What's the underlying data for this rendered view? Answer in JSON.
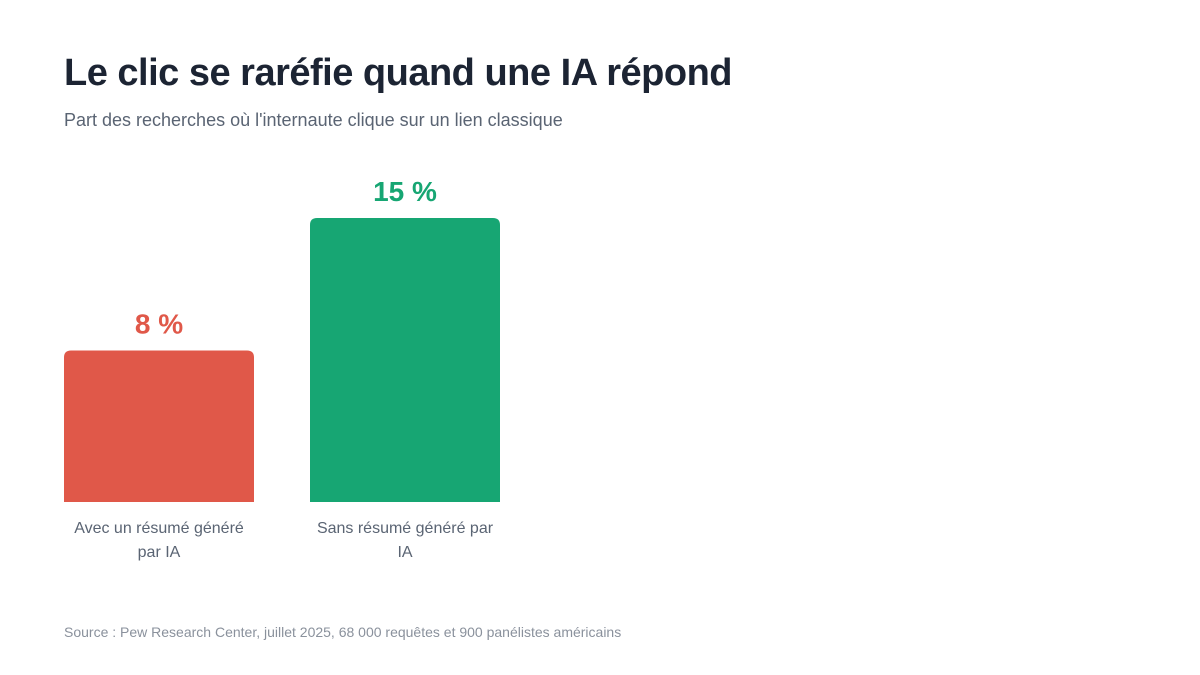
{
  "title": "Le clic se raréfie quand une IA répond",
  "subtitle": "Part des recherches où l'internaute clique sur un lien classique",
  "source": "Source : Pew Research Center, juillet 2025, 68 000 requêtes et 900 panélistes américains",
  "chart_data": {
    "type": "bar",
    "categories": [
      "Avec un résumé généré par IA",
      "Sans résumé généré par IA"
    ],
    "category_lines": [
      [
        "Avec un résumé généré",
        "par IA"
      ],
      [
        "Sans résumé généré par",
        "IA"
      ]
    ],
    "values": [
      8,
      15
    ],
    "value_labels": [
      "8 %",
      "15 %"
    ],
    "colors": [
      "#e05849",
      "#17a673"
    ],
    "ylim": [
      0,
      15
    ],
    "grid": false,
    "legend": "none",
    "xlabel": "",
    "ylabel": ""
  }
}
